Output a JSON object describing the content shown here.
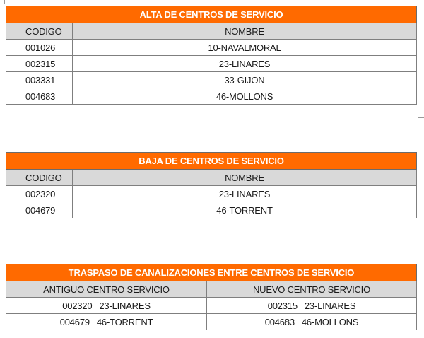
{
  "alta": {
    "title": "ALTA DE CENTROS DE SERVICIO",
    "headers": {
      "code": "CODIGO",
      "name": "NOMBRE"
    },
    "rows": [
      {
        "code": "001026",
        "name": "10-NAVALMORAL"
      },
      {
        "code": "002315",
        "name": "23-LINARES"
      },
      {
        "code": "003331",
        "name": "33-GIJON"
      },
      {
        "code": "004683",
        "name": "46-MOLLONS"
      }
    ]
  },
  "baja": {
    "title": "BAJA DE CENTROS DE SERVICIO",
    "headers": {
      "code": "CODIGO",
      "name": "NOMBRE"
    },
    "rows": [
      {
        "code": "002320",
        "name": "23-LINARES"
      },
      {
        "code": "004679",
        "name": "46-TORRENT"
      }
    ]
  },
  "traspaso": {
    "title": "TRASPASO DE CANALIZACIONES ENTRE CENTROS DE SERVICIO",
    "headers": {
      "old": "ANTIGUO CENTRO SERVICIO",
      "new": "NUEVO CENTRO SERVICIO"
    },
    "rows": [
      {
        "old_code": "002320",
        "old_name": "23-LINARES",
        "new_code": "002315",
        "new_name": "23-LINARES"
      },
      {
        "old_code": "004679",
        "old_name": "46-TORRENT",
        "new_code": "004683",
        "new_name": "46-MOLLONS"
      }
    ]
  },
  "colors": {
    "title_bg": "#ff6a00",
    "header_bg": "#d9d9d9",
    "border": "#7f7f7f"
  }
}
